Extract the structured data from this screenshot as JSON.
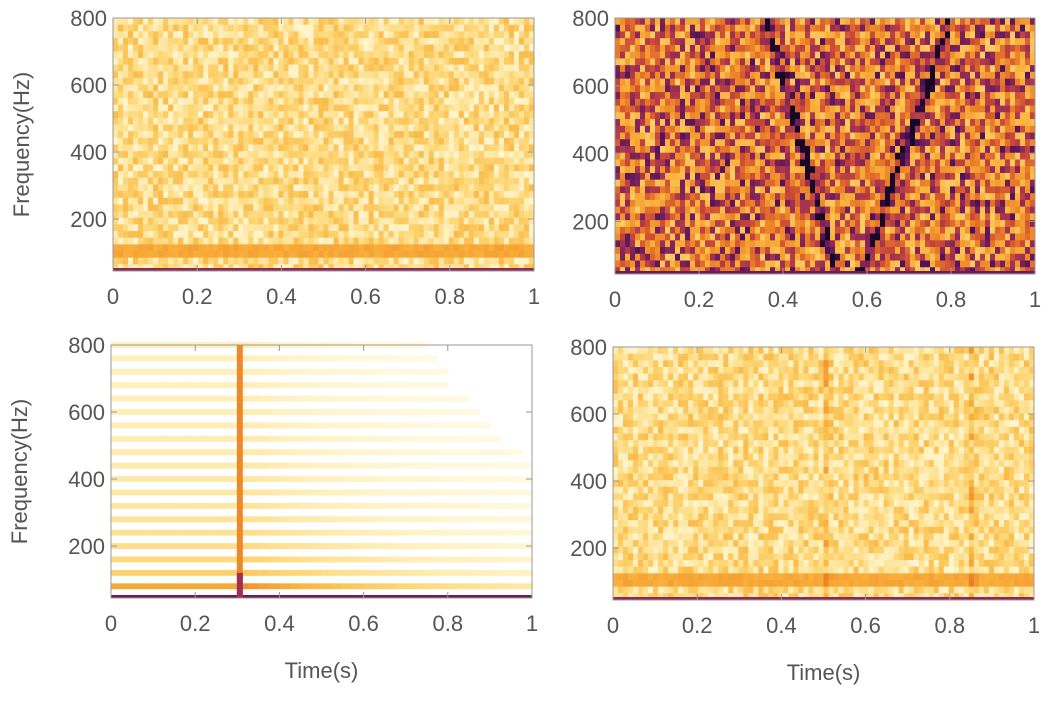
{
  "chart_data": [
    {
      "type": "heatmap",
      "variant": "noise",
      "seed": 11,
      "base_level": 0.22,
      "noise": 0.16,
      "low_band": {
        "freq_range": [
          80,
          120
        ],
        "level": 0.45
      },
      "xlim": [
        0,
        1
      ],
      "ylim": [
        45,
        800
      ],
      "x_ticks": [
        "0",
        "0.2",
        "0.4",
        "0.6",
        "0.8",
        "1"
      ],
      "y_ticks": [
        "200",
        "400",
        "600",
        "800"
      ],
      "xlabel": "",
      "ylabel": "Frequency(Hz)"
    },
    {
      "type": "heatmap",
      "variant": "chirp",
      "seed": 23,
      "base_level": 0.62,
      "noise": 0.32,
      "chirp_lines": [
        {
          "from": [
            0.36,
            800
          ],
          "to": [
            0.53,
            45
          ]
        },
        {
          "from": [
            0.59,
            45
          ],
          "to": [
            0.8,
            800
          ]
        }
      ],
      "xlim": [
        0,
        1
      ],
      "ylim": [
        45,
        800
      ],
      "x_ticks": [
        "0",
        "0.2",
        "0.4",
        "0.6",
        "0.8",
        "1"
      ],
      "y_ticks": [
        "200",
        "400",
        "600",
        "800"
      ],
      "xlabel": "",
      "ylabel": ""
    },
    {
      "type": "heatmap",
      "variant": "impulse",
      "impulse_time": 0.306,
      "harmonic_spacing": 40,
      "xlim": [
        0,
        1
      ],
      "ylim": [
        45,
        800
      ],
      "x_ticks": [
        "0",
        "0.2",
        "0.4",
        "0.6",
        "0.8",
        "1"
      ],
      "y_ticks": [
        "200",
        "400",
        "600",
        "800"
      ],
      "xlabel": "Time(s)",
      "ylabel": "Frequency(Hz)"
    },
    {
      "type": "heatmap",
      "variant": "noise_clicks",
      "seed": 37,
      "base_level": 0.22,
      "noise": 0.16,
      "low_band": {
        "freq_range": [
          80,
          120
        ],
        "level": 0.45
      },
      "clicks": [
        0.51,
        0.855
      ],
      "xlim": [
        0,
        1
      ],
      "ylim": [
        45,
        800
      ],
      "x_ticks": [
        "0",
        "0.2",
        "0.4",
        "0.6",
        "0.8",
        "1"
      ],
      "y_ticks": [
        "200",
        "400",
        "600",
        "800"
      ],
      "xlabel": "Time(s)",
      "ylabel": ""
    }
  ]
}
